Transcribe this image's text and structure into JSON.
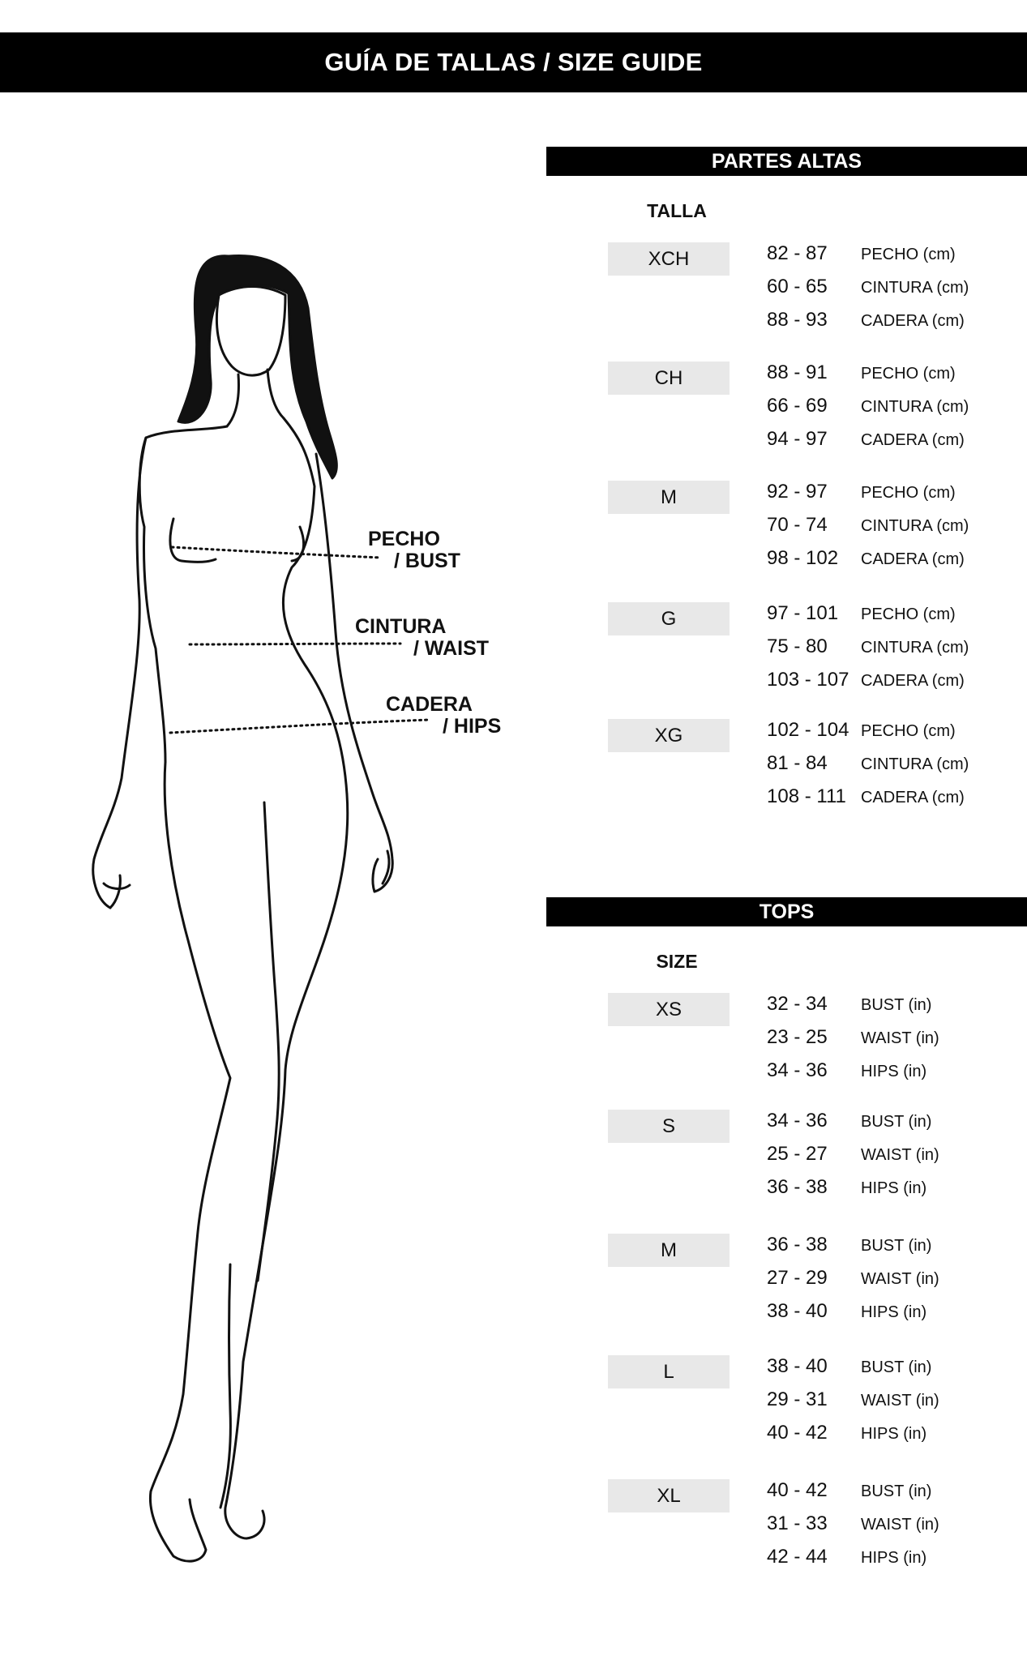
{
  "header": {
    "title": "GUÍA DE TALLAS / SIZE GUIDE"
  },
  "figure_labels": {
    "bust": [
      "PECHO",
      "/ BUST"
    ],
    "waist": [
      "CINTURA",
      "/ WAIST"
    ],
    "hips": [
      "CADERA",
      "/ HIPS"
    ]
  },
  "sections": [
    {
      "title": "PARTES ALTAS",
      "column_label": "TALLA",
      "sizes": [
        {
          "size": "XCH",
          "rows": [
            {
              "value": "82 - 87",
              "label": "PECHO (cm)"
            },
            {
              "value": "60 - 65",
              "label": "CINTURA (cm)"
            },
            {
              "value": "88 - 93",
              "label": "CADERA (cm)"
            }
          ]
        },
        {
          "size": "CH",
          "rows": [
            {
              "value": "88 - 91",
              "label": "PECHO (cm)"
            },
            {
              "value": "66 - 69",
              "label": "CINTURA (cm)"
            },
            {
              "value": "94 - 97",
              "label": "CADERA (cm)"
            }
          ]
        },
        {
          "size": "M",
          "rows": [
            {
              "value": "92 - 97",
              "label": "PECHO (cm)"
            },
            {
              "value": "70 - 74",
              "label": "CINTURA (cm)"
            },
            {
              "value": "98 - 102",
              "label": "CADERA (cm)"
            }
          ]
        },
        {
          "size": "G",
          "rows": [
            {
              "value": "97 - 101",
              "label": "PECHO (cm)"
            },
            {
              "value": "75 - 80",
              "label": "CINTURA (cm)"
            },
            {
              "value": "103 - 107",
              "label": "CADERA (cm)"
            }
          ]
        },
        {
          "size": "XG",
          "rows": [
            {
              "value": "102 - 104",
              "label": "PECHO (cm)"
            },
            {
              "value": "81 - 84",
              "label": "CINTURA (cm)"
            },
            {
              "value": "108 - 111",
              "label": "CADERA (cm)"
            }
          ]
        }
      ]
    },
    {
      "title": "TOPS",
      "column_label": "SIZE",
      "sizes": [
        {
          "size": "XS",
          "rows": [
            {
              "value": "32 - 34",
              "label": "BUST (in)"
            },
            {
              "value": "23 - 25",
              "label": "WAIST (in)"
            },
            {
              "value": "34 - 36",
              "label": "HIPS (in)"
            }
          ]
        },
        {
          "size": "S",
          "rows": [
            {
              "value": "34 - 36",
              "label": "BUST (in)"
            },
            {
              "value": "25 - 27",
              "label": "WAIST (in)"
            },
            {
              "value": "36 - 38",
              "label": "HIPS (in)"
            }
          ]
        },
        {
          "size": "M",
          "rows": [
            {
              "value": "36 - 38",
              "label": "BUST (in)"
            },
            {
              "value": "27 - 29",
              "label": "WAIST (in)"
            },
            {
              "value": "38 - 40",
              "label": "HIPS (in)"
            }
          ]
        },
        {
          "size": "L",
          "rows": [
            {
              "value": "38 - 40",
              "label": "BUST (in)"
            },
            {
              "value": "29 - 31",
              "label": "WAIST (in)"
            },
            {
              "value": "40 - 42",
              "label": "HIPS (in)"
            }
          ]
        },
        {
          "size": "XL",
          "rows": [
            {
              "value": "40 - 42",
              "label": "BUST (in)"
            },
            {
              "value": "31 - 33",
              "label": "WAIST (in)"
            },
            {
              "value": "42 - 44",
              "label": "HIPS (in)"
            }
          ]
        }
      ]
    }
  ]
}
